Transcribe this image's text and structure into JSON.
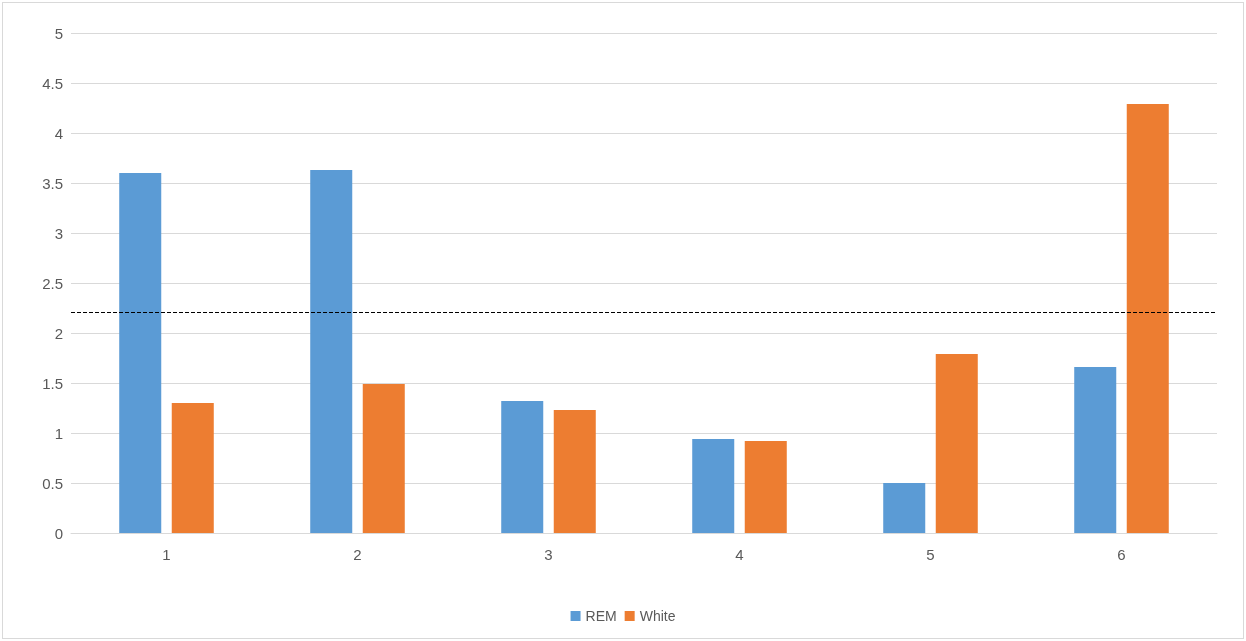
{
  "chart_data": {
    "type": "bar",
    "categories": [
      "1",
      "2",
      "3",
      "4",
      "5",
      "6"
    ],
    "series": [
      {
        "name": "REM",
        "color": "#5b9bd5",
        "values": [
          3.6,
          3.63,
          1.32,
          0.94,
          0.5,
          1.66
        ]
      },
      {
        "name": "White",
        "color": "#ed7d31",
        "values": [
          1.3,
          1.49,
          1.23,
          0.92,
          1.79,
          4.29
        ]
      }
    ],
    "ylim": [
      0,
      5
    ],
    "yticks": [
      0,
      0.5,
      1,
      1.5,
      2,
      2.5,
      3,
      3.5,
      4,
      4.5,
      5
    ],
    "grid": "y",
    "legend": "bottom",
    "ref_lines": [
      {
        "axis": "y",
        "value": 2.21,
        "color": "#000000",
        "line_style": "dashed"
      }
    ]
  }
}
